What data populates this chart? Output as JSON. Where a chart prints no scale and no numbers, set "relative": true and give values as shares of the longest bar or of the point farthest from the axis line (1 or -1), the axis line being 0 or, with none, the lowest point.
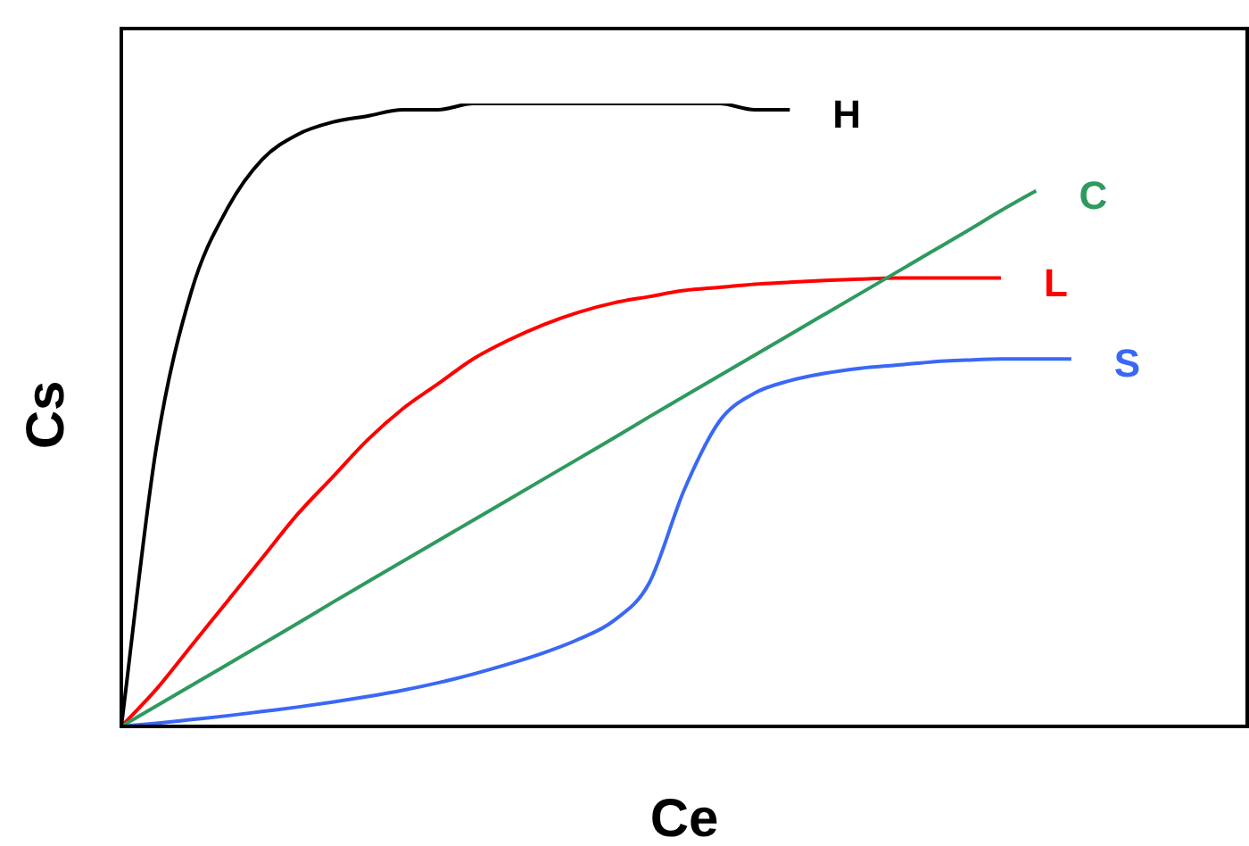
{
  "chart_data": {
    "type": "line",
    "relative": true,
    "xlabel": "Ce",
    "ylabel": "Cs",
    "legend": false,
    "marker": "none",
    "categories": [
      null,
      null,
      null,
      null,
      null,
      null,
      null,
      null,
      null,
      null,
      null,
      null,
      null,
      null,
      null,
      null,
      null,
      null,
      null,
      null,
      null,
      null,
      null,
      null,
      null,
      null,
      null,
      null,
      null,
      null,
      null,
      null,
      null
    ],
    "series": [
      {
        "name": "H",
        "color": "#000000",
        "values": [
          0,
          0.45,
          0.7,
          0.83,
          0.91,
          0.95,
          0.97,
          0.98,
          0.99,
          0.99,
          1,
          1,
          1,
          1,
          1,
          1,
          1,
          1,
          0.99,
          0.99,
          null,
          null,
          null,
          null,
          null,
          null,
          null,
          null,
          null,
          null,
          null,
          null,
          null
        ]
      },
      {
        "name": "C",
        "color": "#2e9a5e",
        "values": [
          0,
          0.033,
          0.066,
          0.099,
          0.132,
          0.165,
          0.199,
          0.232,
          0.265,
          0.298,
          0.331,
          0.364,
          0.397,
          0.43,
          0.463,
          0.497,
          0.53,
          0.563,
          0.596,
          0.629,
          0.662,
          0.695,
          0.728,
          0.761,
          0.794,
          0.828,
          0.86,
          null,
          null,
          null,
          null,
          null,
          null
        ]
      },
      {
        "name": "L",
        "color": "#ff0000",
        "values": [
          0,
          0.06,
          0.13,
          0.2,
          0.27,
          0.34,
          0.4,
          0.46,
          0.51,
          0.55,
          0.59,
          0.62,
          0.645,
          0.665,
          0.68,
          0.69,
          0.7,
          0.705,
          0.71,
          0.713,
          0.716,
          0.718,
          0.72,
          0.72,
          0.72,
          0.72,
          null,
          null,
          null,
          null,
          null,
          null,
          null
        ]
      },
      {
        "name": "S",
        "color": "#3a68f5",
        "values": [
          0,
          0.005,
          0.011,
          0.017,
          0.024,
          0.031,
          0.039,
          0.048,
          0.058,
          0.07,
          0.084,
          0.1,
          0.118,
          0.14,
          0.17,
          0.23,
          0.38,
          0.49,
          0.535,
          0.555,
          0.567,
          0.575,
          0.58,
          0.585,
          0.588,
          0.59,
          0.59,
          0.59,
          null,
          null,
          null,
          null,
          null
        ]
      }
    ]
  }
}
